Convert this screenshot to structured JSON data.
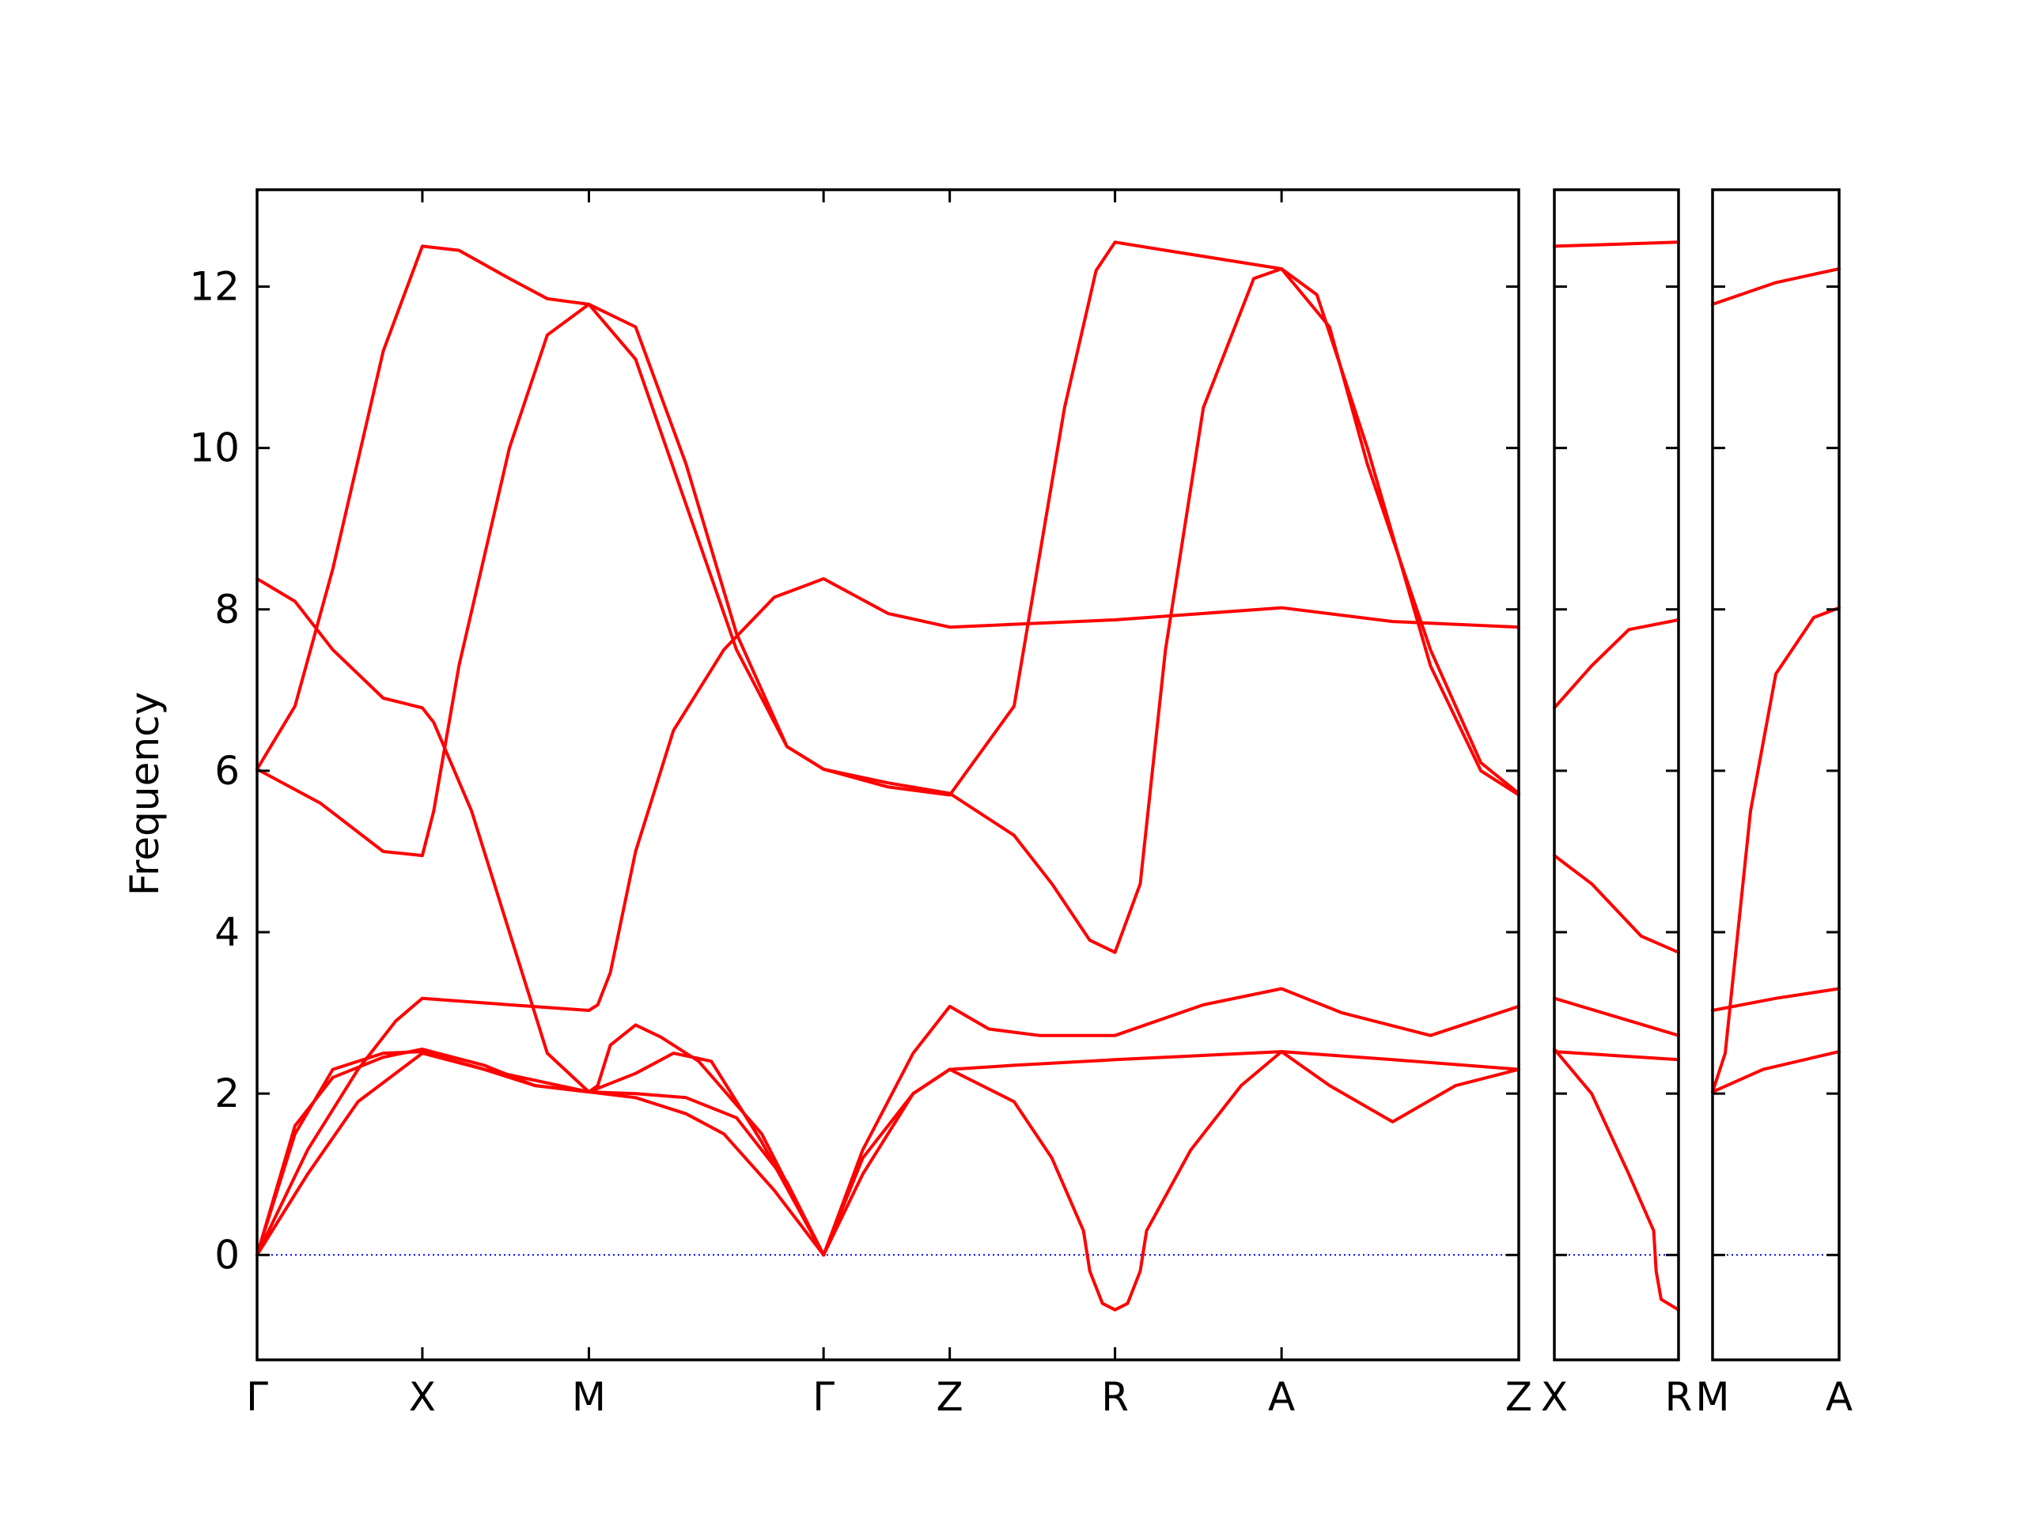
{
  "chart_data": {
    "type": "line",
    "title": "",
    "ylabel": "Frequency",
    "ylim": [
      -1.3,
      13.2
    ],
    "yticks": [
      0,
      2,
      4,
      6,
      8,
      10,
      12
    ],
    "colors": {
      "bands": "#ff0000",
      "zero_line": "#0000ff",
      "axes": "#000000"
    },
    "panels": [
      {
        "id": "main",
        "xlim": [
          0,
          1
        ],
        "xticks": [
          {
            "x": 0.0,
            "label": "Γ"
          },
          {
            "x": 0.131,
            "label": "X"
          },
          {
            "x": 0.263,
            "label": "M"
          },
          {
            "x": 0.449,
            "label": "Γ"
          },
          {
            "x": 0.549,
            "label": "Z"
          },
          {
            "x": 0.68,
            "label": "R"
          },
          {
            "x": 0.812,
            "label": "A"
          },
          {
            "x": 1.0,
            "label": "Z"
          }
        ],
        "series": [
          {
            "points": [
              [
                0,
                0
              ],
              [
                0.03,
                1.6
              ],
              [
                0.06,
                2.2
              ],
              [
                0.1,
                2.45
              ],
              [
                0.131,
                2.55
              ],
              [
                0.18,
                2.35
              ],
              [
                0.22,
                2.1
              ],
              [
                0.263,
                2.02
              ],
              [
                0.3,
                2.25
              ],
              [
                0.33,
                2.5
              ],
              [
                0.36,
                2.4
              ],
              [
                0.4,
                1.4
              ],
              [
                0.449,
                0
              ]
            ]
          },
          {
            "points": [
              [
                0,
                0
              ],
              [
                0.04,
                1.0
              ],
              [
                0.08,
                1.9
              ],
              [
                0.131,
                2.5
              ],
              [
                0.18,
                2.3
              ],
              [
                0.22,
                2.1
              ],
              [
                0.263,
                2.02
              ],
              [
                0.3,
                1.95
              ],
              [
                0.34,
                1.75
              ],
              [
                0.37,
                1.5
              ],
              [
                0.41,
                0.8
              ],
              [
                0.449,
                0
              ]
            ]
          },
          {
            "points": [
              [
                0,
                0
              ],
              [
                0.04,
                1.3
              ],
              [
                0.08,
                2.3
              ],
              [
                0.11,
                2.9
              ],
              [
                0.131,
                3.18
              ],
              [
                0.2,
                3.1
              ],
              [
                0.263,
                3.03
              ],
              [
                0.27,
                3.1
              ],
              [
                0.28,
                3.5
              ],
              [
                0.3,
                5.0
              ],
              [
                0.33,
                6.5
              ],
              [
                0.37,
                7.5
              ],
              [
                0.41,
                8.15
              ],
              [
                0.449,
                8.38
              ],
              [
                0.5,
                7.95
              ],
              [
                0.549,
                7.78
              ],
              [
                0.68,
                7.87
              ],
              [
                0.812,
                8.02
              ],
              [
                0.9,
                7.85
              ],
              [
                1.0,
                7.78
              ]
            ]
          },
          {
            "points": [
              [
                0,
                0
              ],
              [
                0.03,
                1.5
              ],
              [
                0.06,
                2.3
              ],
              [
                0.1,
                2.5
              ],
              [
                0.131,
                2.52
              ],
              [
                0.18,
                2.3
              ],
              [
                0.263,
                2.02
              ],
              [
                0.27,
                2.1
              ],
              [
                0.28,
                2.6
              ],
              [
                0.3,
                2.85
              ],
              [
                0.32,
                2.7
              ],
              [
                0.35,
                2.4
              ],
              [
                0.4,
                1.5
              ],
              [
                0.449,
                0
              ]
            ]
          },
          {
            "points": [
              [
                0,
                6.02
              ],
              [
                0.03,
                6.8
              ],
              [
                0.06,
                8.5
              ],
              [
                0.1,
                11.2
              ],
              [
                0.131,
                12.5
              ],
              [
                0.16,
                12.45
              ],
              [
                0.2,
                12.1
              ],
              [
                0.23,
                11.85
              ],
              [
                0.263,
                11.78
              ],
              [
                0.3,
                11.1
              ],
              [
                0.34,
                9.3
              ],
              [
                0.38,
                7.5
              ],
              [
                0.42,
                6.3
              ],
              [
                0.449,
                6.02
              ],
              [
                0.5,
                5.8
              ],
              [
                0.549,
                5.7
              ],
              [
                0.6,
                6.8
              ],
              [
                0.64,
                10.5
              ],
              [
                0.665,
                12.2
              ],
              [
                0.68,
                12.55
              ],
              [
                0.72,
                12.45
              ],
              [
                0.812,
                12.22
              ],
              [
                0.84,
                11.9
              ],
              [
                0.88,
                10.0
              ],
              [
                0.93,
                7.3
              ],
              [
                0.97,
                6.0
              ],
              [
                1.0,
                5.7
              ]
            ]
          },
          {
            "points": [
              [
                0,
                8.38
              ],
              [
                0.03,
                8.1
              ],
              [
                0.06,
                7.5
              ],
              [
                0.1,
                6.9
              ],
              [
                0.131,
                6.78
              ],
              [
                0.14,
                6.6
              ],
              [
                0.17,
                5.5
              ],
              [
                0.2,
                4.0
              ],
              [
                0.23,
                2.5
              ],
              [
                0.263,
                2.02
              ],
              [
                0.3,
                2.0
              ],
              [
                0.34,
                1.95
              ],
              [
                0.38,
                1.7
              ],
              [
                0.42,
                0.9
              ],
              [
                0.449,
                0
              ]
            ]
          },
          {
            "points": [
              [
                0,
                6.02
              ],
              [
                0.05,
                5.6
              ],
              [
                0.1,
                5.0
              ],
              [
                0.131,
                4.95
              ],
              [
                0.14,
                5.5
              ],
              [
                0.16,
                7.3
              ],
              [
                0.2,
                10.0
              ],
              [
                0.23,
                11.4
              ],
              [
                0.263,
                11.78
              ],
              [
                0.3,
                11.5
              ],
              [
                0.34,
                9.8
              ],
              [
                0.38,
                7.7
              ],
              [
                0.42,
                6.3
              ],
              [
                0.449,
                6.02
              ],
              [
                0.5,
                5.85
              ],
              [
                0.549,
                5.72
              ],
              [
                0.6,
                5.2
              ],
              [
                0.63,
                4.6
              ],
              [
                0.66,
                3.9
              ],
              [
                0.68,
                3.75
              ],
              [
                0.7,
                4.6
              ],
              [
                0.72,
                7.5
              ],
              [
                0.75,
                10.5
              ],
              [
                0.79,
                12.1
              ],
              [
                0.812,
                12.22
              ],
              [
                0.85,
                11.5
              ],
              [
                0.88,
                9.8
              ],
              [
                0.93,
                7.5
              ],
              [
                0.97,
                6.1
              ],
              [
                1.0,
                5.72
              ]
            ]
          },
          {
            "points": [
              [
                0.449,
                0
              ],
              [
                0.48,
                1.3
              ],
              [
                0.52,
                2.5
              ],
              [
                0.549,
                3.08
              ],
              [
                0.58,
                2.8
              ],
              [
                0.62,
                2.72
              ],
              [
                0.68,
                2.72
              ],
              [
                0.75,
                3.1
              ],
              [
                0.812,
                3.3
              ],
              [
                0.86,
                3.0
              ],
              [
                0.93,
                2.72
              ],
              [
                1.0,
                3.08
              ]
            ]
          },
          {
            "points": [
              [
                0.449,
                0
              ],
              [
                0.48,
                1.2
              ],
              [
                0.52,
                2.0
              ],
              [
                0.549,
                2.3
              ],
              [
                0.6,
                2.35
              ],
              [
                0.68,
                2.42
              ],
              [
                0.812,
                2.52
              ],
              [
                0.9,
                2.42
              ],
              [
                1.0,
                2.3
              ]
            ]
          },
          {
            "points": [
              [
                0.449,
                0
              ],
              [
                0.48,
                1.0
              ],
              [
                0.52,
                2.0
              ],
              [
                0.549,
                2.3
              ],
              [
                0.6,
                1.9
              ],
              [
                0.63,
                1.2
              ],
              [
                0.655,
                0.3
              ],
              [
                0.66,
                -0.2
              ],
              [
                0.67,
                -0.6
              ],
              [
                0.68,
                -0.68
              ],
              [
                0.69,
                -0.6
              ],
              [
                0.7,
                -0.2
              ],
              [
                0.705,
                0.3
              ],
              [
                0.74,
                1.3
              ],
              [
                0.78,
                2.1
              ],
              [
                0.812,
                2.52
              ],
              [
                0.85,
                2.1
              ],
              [
                0.9,
                1.65
              ],
              [
                0.95,
                2.1
              ],
              [
                1.0,
                2.3
              ]
            ]
          }
        ]
      },
      {
        "id": "xr",
        "xlim": [
          0,
          1
        ],
        "xticks": [
          {
            "x": 0.0,
            "label": "X"
          },
          {
            "x": 1.0,
            "label": "R"
          }
        ],
        "series": [
          {
            "points": [
              [
                0,
                12.5
              ],
              [
                1,
                12.55
              ]
            ]
          },
          {
            "points": [
              [
                0,
                6.78
              ],
              [
                0.3,
                7.3
              ],
              [
                0.6,
                7.75
              ],
              [
                1,
                7.87
              ]
            ]
          },
          {
            "points": [
              [
                0,
                4.95
              ],
              [
                0.3,
                4.6
              ],
              [
                0.7,
                3.95
              ],
              [
                1,
                3.75
              ]
            ]
          },
          {
            "points": [
              [
                0,
                3.18
              ],
              [
                0.5,
                2.95
              ],
              [
                1,
                2.72
              ]
            ]
          },
          {
            "points": [
              [
                0,
                2.52
              ],
              [
                1,
                2.42
              ]
            ]
          },
          {
            "points": [
              [
                0,
                2.55
              ],
              [
                0.3,
                2.0
              ],
              [
                0.6,
                1.0
              ],
              [
                0.8,
                0.3
              ],
              [
                0.82,
                -0.2
              ],
              [
                0.86,
                -0.55
              ],
              [
                1,
                -0.68
              ]
            ]
          }
        ]
      },
      {
        "id": "ma",
        "xlim": [
          0,
          1
        ],
        "xticks": [
          {
            "x": 0.0,
            "label": "M"
          },
          {
            "x": 1.0,
            "label": "A"
          }
        ],
        "series": [
          {
            "points": [
              [
                0,
                11.78
              ],
              [
                0.5,
                12.05
              ],
              [
                1,
                12.22
              ]
            ]
          },
          {
            "points": [
              [
                0,
                2.02
              ],
              [
                0.1,
                2.5
              ],
              [
                0.3,
                5.5
              ],
              [
                0.5,
                7.2
              ],
              [
                0.8,
                7.9
              ],
              [
                1,
                8.02
              ]
            ]
          },
          {
            "points": [
              [
                0,
                3.03
              ],
              [
                0.5,
                3.18
              ],
              [
                1,
                3.3
              ]
            ]
          },
          {
            "points": [
              [
                0,
                2.02
              ],
              [
                0.4,
                2.3
              ],
              [
                1,
                2.52
              ]
            ]
          }
        ]
      }
    ]
  }
}
